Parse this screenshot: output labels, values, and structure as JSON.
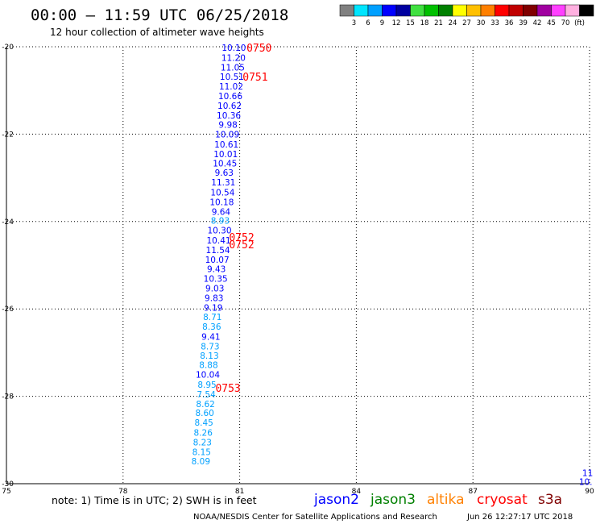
{
  "header": {
    "title": "00:00 – 11:59 UTC 06/25/2018",
    "subtitle": "12 hour collection of altimeter wave heights"
  },
  "color_scale": {
    "swatches": [
      "#808080",
      "#00e5ff",
      "#00a0ff",
      "#0000ff",
      "#0000a0",
      "#40e040",
      "#00c000",
      "#008000",
      "#ffff00",
      "#ffc000",
      "#ff8000",
      "#ff0000",
      "#c00000",
      "#800000",
      "#a000a0",
      "#ff40ff",
      "#ffb0e0",
      "#000000"
    ],
    "labels": [
      "3",
      "6",
      "9",
      "12",
      "15",
      "18",
      "21",
      "24",
      "27",
      "30",
      "33",
      "36",
      "39",
      "42",
      "45",
      "70",
      "(ft)"
    ]
  },
  "chart_data": {
    "type": "scatter",
    "title": "12 hour collection of altimeter wave heights",
    "xlabel": "",
    "ylabel": "",
    "xlim": [
      75,
      90
    ],
    "ylim": [
      -30,
      -20
    ],
    "x_ticks": [
      "75",
      "78",
      "81",
      "84",
      "87",
      "90"
    ],
    "y_ticks": [
      "-20",
      "-22",
      "-24",
      "-26",
      "-28",
      "-30"
    ],
    "grid": true,
    "series": [
      {
        "name": "jason2",
        "points": [
          {
            "x": 80.85,
            "y": -20.02,
            "v": "10.10"
          },
          {
            "x": 80.84,
            "y": -20.25,
            "v": "11.20"
          },
          {
            "x": 80.82,
            "y": -20.47,
            "v": "11.05"
          },
          {
            "x": 80.8,
            "y": -20.68,
            "v": "10.51"
          },
          {
            "x": 80.78,
            "y": -20.9,
            "v": "11.02"
          },
          {
            "x": 80.76,
            "y": -21.13,
            "v": "10.66"
          },
          {
            "x": 80.74,
            "y": -21.35,
            "v": "10.62"
          },
          {
            "x": 80.72,
            "y": -21.57,
            "v": "10.36"
          },
          {
            "x": 80.7,
            "y": -21.78,
            "v": "9.98"
          },
          {
            "x": 80.68,
            "y": -22.0,
            "v": "10.09"
          },
          {
            "x": 80.66,
            "y": -22.23,
            "v": "10.61"
          },
          {
            "x": 80.64,
            "y": -22.45,
            "v": "10.01"
          },
          {
            "x": 80.62,
            "y": -22.67,
            "v": "10.45"
          },
          {
            "x": 80.6,
            "y": -22.88,
            "v": "9.63"
          },
          {
            "x": 80.58,
            "y": -23.1,
            "v": "11.31"
          },
          {
            "x": 80.56,
            "y": -23.33,
            "v": "10.54"
          },
          {
            "x": 80.54,
            "y": -23.55,
            "v": "10.18"
          },
          {
            "x": 80.52,
            "y": -23.77,
            "v": "9.64"
          },
          {
            "x": 80.5,
            "y": -23.98,
            "v": "8.93"
          },
          {
            "x": 80.48,
            "y": -24.2,
            "v": "10.30"
          },
          {
            "x": 80.46,
            "y": -24.43,
            "v": "10.41"
          },
          {
            "x": 80.44,
            "y": -24.65,
            "v": "11.54"
          },
          {
            "x": 80.42,
            "y": -24.87,
            "v": "10.07"
          },
          {
            "x": 80.4,
            "y": -25.08,
            "v": "9.43"
          },
          {
            "x": 80.38,
            "y": -25.3,
            "v": "10.35"
          },
          {
            "x": 80.36,
            "y": -25.53,
            "v": "9.03"
          },
          {
            "x": 80.34,
            "y": -25.75,
            "v": "9.83"
          },
          {
            "x": 80.32,
            "y": -25.97,
            "v": "9.19"
          },
          {
            "x": 80.3,
            "y": -26.18,
            "v": "8.71"
          },
          {
            "x": 80.28,
            "y": -26.4,
            "v": "8.36"
          },
          {
            "x": 80.26,
            "y": -26.63,
            "v": "9.41"
          },
          {
            "x": 80.24,
            "y": -26.85,
            "v": "8.73"
          },
          {
            "x": 80.22,
            "y": -27.07,
            "v": "8.13"
          },
          {
            "x": 80.2,
            "y": -27.28,
            "v": "8.88"
          },
          {
            "x": 80.18,
            "y": -27.5,
            "v": "10.04"
          },
          {
            "x": 80.16,
            "y": -27.73,
            "v": "8.95"
          },
          {
            "x": 80.14,
            "y": -27.95,
            "v": "7.54"
          },
          {
            "x": 80.12,
            "y": -28.17,
            "v": "8.62"
          },
          {
            "x": 80.1,
            "y": -28.38,
            "v": "8.60"
          },
          {
            "x": 80.08,
            "y": -28.6,
            "v": "8.45"
          },
          {
            "x": 80.06,
            "y": -28.83,
            "v": "8.26"
          },
          {
            "x": 80.04,
            "y": -29.05,
            "v": "8.23"
          },
          {
            "x": 80.02,
            "y": -29.27,
            "v": "8.15"
          },
          {
            "x": 80.0,
            "y": -29.48,
            "v": "8.09"
          }
        ]
      },
      {
        "name": "jason2",
        "points": [
          {
            "x": 89.95,
            "y": -29.75,
            "v": "11"
          },
          {
            "x": 89.9,
            "y": -29.95,
            "v": "10."
          }
        ]
      }
    ],
    "time_labels": [
      {
        "x": 81.5,
        "y": -20.02,
        "text": "0750"
      },
      {
        "x": 81.4,
        "y": -20.68,
        "text": "0751"
      },
      {
        "x": 81.05,
        "y": -24.35,
        "text": "0752"
      },
      {
        "x": 81.05,
        "y": -24.52,
        "text": "0752"
      },
      {
        "x": 80.7,
        "y": -27.8,
        "text": "0753"
      }
    ]
  },
  "footer": {
    "note": "note: 1) Time is in UTC; 2) SWH is in feet",
    "satellites": [
      {
        "name": "jason2",
        "color": "#0000ff"
      },
      {
        "name": "jason3",
        "color": "#008000"
      },
      {
        "name": "altika",
        "color": "#ff8000"
      },
      {
        "name": "cryosat",
        "color": "#ff0000"
      },
      {
        "name": "s3a",
        "color": "#800000"
      }
    ],
    "credit": "NOAA/NESDIS Center for Satellite Applications and Research",
    "timestamp": "Jun 26 12:27:17 UTC 2018"
  }
}
